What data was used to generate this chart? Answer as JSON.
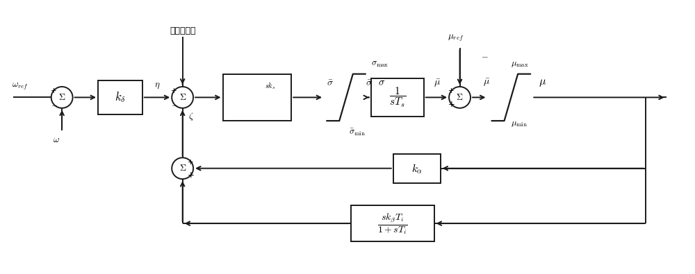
{
  "bg_color": "#ffffff",
  "line_color": "#1a1a1a",
  "fig_width": 10.0,
  "fig_height": 3.95,
  "chinese_label": "调频器信号",
  "lw": 1.4
}
